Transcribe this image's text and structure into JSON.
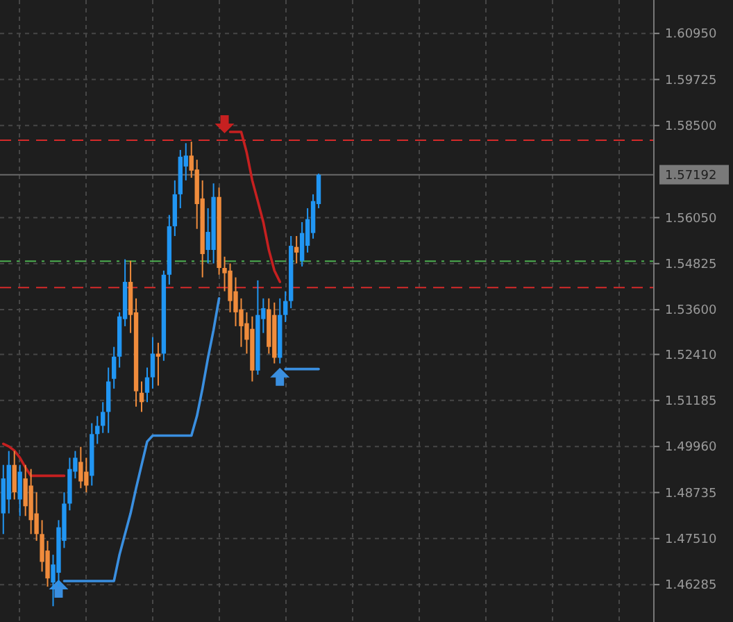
{
  "chart_data": {
    "type": "candlestick",
    "categories": [
      null,
      null,
      null,
      null,
      null,
      null,
      null,
      null,
      null,
      null,
      null,
      null,
      null,
      null,
      null,
      null,
      null,
      null,
      null,
      null,
      null,
      null,
      null,
      null,
      null,
      null,
      null,
      null,
      null,
      null,
      null,
      null,
      null,
      null,
      null,
      null,
      null,
      null,
      null,
      null,
      null,
      null,
      null,
      null,
      null,
      null,
      null,
      null,
      null,
      null,
      null,
      null,
      null,
      null,
      null,
      null,
      null,
      null,
      null,
      null,
      null,
      null,
      null,
      null,
      null,
      null,
      null,
      null,
      null,
      null,
      null,
      null,
      null,
      null,
      null,
      null,
      null,
      null,
      null,
      null,
      null,
      null,
      null,
      null,
      null,
      null,
      null,
      null,
      null,
      null,
      null,
      null,
      null,
      null,
      null,
      null,
      null,
      null,
      null,
      null,
      null,
      null,
      null,
      null,
      null,
      null,
      null,
      null,
      null,
      null,
      null,
      null,
      null,
      null,
      null,
      null,
      null,
      null
    ],
    "ohlc": [
      [
        1.4818,
        1.4947,
        1.4763,
        1.4911
      ],
      [
        1.4855,
        1.4984,
        1.4818,
        1.4947
      ],
      [
        1.4947,
        1.4984,
        1.4855,
        1.4874
      ],
      [
        1.4855,
        1.4947,
        1.4811,
        1.4929
      ],
      [
        1.4911,
        1.4947,
        1.4811,
        1.4837
      ],
      [
        1.4892,
        1.4936,
        1.4763,
        1.48
      ],
      [
        1.4818,
        1.4874,
        1.4745,
        1.4763
      ],
      [
        1.4763,
        1.48,
        1.4663,
        1.4689
      ],
      [
        1.4719,
        1.4745,
        1.4623,
        1.4645
      ],
      [
        1.4634,
        1.4708,
        1.4571,
        1.4682
      ],
      [
        1.466,
        1.48,
        1.4623,
        1.4781
      ],
      [
        1.4745,
        1.4874,
        1.4726,
        1.4844
      ],
      [
        1.4844,
        1.4966,
        1.4826,
        1.4936
      ],
      [
        1.4929,
        1.4984,
        1.4911,
        1.4966
      ],
      [
        1.4955,
        1.4995,
        1.4885,
        1.4903
      ],
      [
        1.4929,
        1.4966,
        1.4874,
        1.4892
      ],
      [
        1.4918,
        1.5058,
        1.4892,
        1.5029
      ],
      [
        1.5029,
        1.5077,
        1.5003,
        1.5051
      ],
      [
        1.5051,
        1.5114,
        1.5032,
        1.5088
      ],
      [
        1.5088,
        1.5206,
        1.5032,
        1.5169
      ],
      [
        1.5176,
        1.5261,
        1.515,
        1.5235
      ],
      [
        1.5235,
        1.5353,
        1.5206,
        1.5342
      ],
      [
        1.5335,
        1.5494,
        1.5316,
        1.5434
      ],
      [
        1.5434,
        1.549,
        1.5298,
        1.5346
      ],
      [
        1.5353,
        1.539,
        1.5102,
        1.5143
      ],
      [
        1.5139,
        1.5169,
        1.5088,
        1.5114
      ],
      [
        1.5139,
        1.5206,
        1.5114,
        1.518
      ],
      [
        1.518,
        1.5287,
        1.515,
        1.5243
      ],
      [
        1.5243,
        1.5272,
        1.5158,
        1.5235
      ],
      [
        1.5243,
        1.5464,
        1.5224,
        1.5453
      ],
      [
        1.5453,
        1.5612,
        1.5427,
        1.5582
      ],
      [
        1.5582,
        1.5704,
        1.5556,
        1.5667
      ],
      [
        1.5667,
        1.5785,
        1.563,
        1.5767
      ],
      [
        1.5741,
        1.5803,
        1.5704,
        1.577
      ],
      [
        1.577,
        1.5807,
        1.5711,
        1.573
      ],
      [
        1.5733,
        1.5759,
        1.5575,
        1.5641
      ],
      [
        1.5656,
        1.5704,
        1.5446,
        1.5508
      ],
      [
        1.5519,
        1.563,
        1.5483,
        1.5567
      ],
      [
        1.5519,
        1.5696,
        1.5483,
        1.566
      ],
      [
        1.566,
        1.5685,
        1.5453,
        1.5471
      ],
      [
        1.5471,
        1.5501,
        1.5409,
        1.5457
      ],
      [
        1.5464,
        1.5483,
        1.5353,
        1.5383
      ],
      [
        1.5409,
        1.5446,
        1.5316,
        1.5353
      ],
      [
        1.5361,
        1.539,
        1.5261,
        1.5316
      ],
      [
        1.5324,
        1.5353,
        1.5243,
        1.528
      ],
      [
        1.5309,
        1.5342,
        1.5169,
        1.5198
      ],
      [
        1.5198,
        1.5438,
        1.5187,
        1.5346
      ],
      [
        1.5335,
        1.539,
        1.5298,
        1.5364
      ],
      [
        1.5361,
        1.539,
        1.5243,
        1.5261
      ],
      [
        1.5346,
        1.5379,
        1.5217,
        1.5232
      ],
      [
        1.5232,
        1.539,
        1.5217,
        1.5346
      ],
      [
        1.5346,
        1.5409,
        1.5327,
        1.5383
      ],
      [
        1.5383,
        1.5556,
        1.5364,
        1.553
      ],
      [
        1.5527,
        1.5556,
        1.5483,
        1.5512
      ],
      [
        1.549,
        1.5593,
        1.5475,
        1.5564
      ],
      [
        1.553,
        1.563,
        1.5512,
        1.5601
      ],
      [
        1.5564,
        1.5667,
        1.5549,
        1.5649
      ],
      [
        1.5641,
        1.5722,
        1.563,
        1.57192
      ],
      null,
      null,
      null,
      null,
      null,
      null,
      null,
      null,
      null,
      null,
      null,
      null,
      null,
      null,
      null,
      null,
      null,
      null,
      null,
      null,
      null,
      null,
      null,
      null,
      null,
      null,
      null,
      null,
      null,
      null,
      null,
      null,
      null,
      null,
      null,
      null,
      null,
      null,
      null,
      null,
      null,
      null,
      null,
      null,
      null,
      null,
      null,
      null,
      null,
      null,
      null,
      null,
      null,
      null,
      null,
      null,
      null,
      null,
      null,
      null
    ],
    "colors": [
      "#2196f3",
      "#2196f3",
      "#f08c3c",
      "#2196f3",
      "#f08c3c",
      "#f08c3c",
      "#f08c3c",
      "#f08c3c",
      "#f08c3c",
      "#2196f3",
      "#2196f3",
      "#2196f3",
      "#2196f3",
      "#2196f3",
      "#f08c3c",
      "#f08c3c",
      "#2196f3",
      "#2196f3",
      "#2196f3",
      "#2196f3",
      "#2196f3",
      "#2196f3",
      "#2196f3",
      "#f08c3c",
      "#f08c3c",
      "#f08c3c",
      "#2196f3",
      "#2196f3",
      "#f08c3c",
      "#2196f3",
      "#2196f3",
      "#2196f3",
      "#2196f3",
      "#2196f3",
      "#f08c3c",
      "#f08c3c",
      "#f08c3c",
      "#2196f3",
      "#2196f3",
      "#f08c3c",
      "#f08c3c",
      "#f08c3c",
      "#f08c3c",
      "#f08c3c",
      "#f08c3c",
      "#f08c3c",
      "#2196f3",
      "#2196f3",
      "#f08c3c",
      "#f08c3c",
      "#2196f3",
      "#2196f3",
      "#2196f3",
      "#f08c3c",
      "#2196f3",
      "#2196f3",
      "#2196f3",
      "#2196f3",
      null,
      null,
      null,
      null,
      null,
      null,
      null,
      null,
      null,
      null,
      null,
      null,
      null,
      null,
      null,
      null,
      null,
      null,
      null,
      null,
      null,
      null,
      null,
      null,
      null,
      null,
      null,
      null,
      null,
      null,
      null,
      null,
      null,
      null,
      null,
      null,
      null,
      null,
      null,
      null,
      null,
      null,
      null,
      null,
      null,
      null,
      null,
      null,
      null,
      null,
      null,
      null,
      null,
      null,
      null,
      null,
      null,
      null,
      null,
      null
    ],
    "series": [
      {
        "type": "line",
        "color": "#c62020",
        "values": [
          1.5003,
          1.4996,
          1.4985,
          1.4966,
          1.494,
          1.4918,
          1.4918,
          1.4918,
          1.4918,
          1.4918,
          1.4918,
          1.4918,
          null,
          null,
          null,
          null,
          null,
          null,
          null,
          null,
          null,
          null,
          null,
          null,
          null,
          null,
          null,
          null,
          null,
          null,
          null,
          null,
          null,
          null,
          null,
          null,
          null,
          null,
          null,
          null,
          null,
          1.5833,
          1.5833,
          1.5833,
          1.5778,
          1.5704,
          1.5649,
          1.5593,
          1.5519,
          1.5464,
          1.5434,
          null,
          null,
          null,
          null,
          null,
          null,
          null,
          null,
          null,
          null,
          null,
          null,
          null,
          null,
          null,
          null,
          null,
          null,
          null,
          null,
          null,
          null,
          null,
          null,
          null,
          null,
          null,
          null,
          null,
          null,
          null,
          null,
          null,
          null,
          null,
          null,
          null,
          null,
          null,
          null,
          null,
          null,
          null,
          null,
          null,
          null,
          null,
          null,
          null,
          null,
          null,
          null,
          null,
          null,
          null,
          null,
          null,
          null,
          null,
          null,
          null,
          null,
          null,
          null,
          null,
          null,
          null
        ]
      },
      {
        "type": "line",
        "color": "#3a8fe0",
        "values": [
          null,
          null,
          null,
          null,
          null,
          null,
          null,
          null,
          null,
          null,
          null,
          1.4638,
          1.4638,
          1.4638,
          1.4638,
          1.4638,
          1.4638,
          1.4638,
          1.4638,
          1.4638,
          1.4638,
          1.4708,
          1.4763,
          1.4818,
          1.4885,
          1.4947,
          1.5009,
          1.5025,
          1.5025,
          1.5025,
          1.5025,
          1.5025,
          1.5025,
          1.5025,
          1.5025,
          1.5077,
          1.515,
          1.5232,
          1.5306,
          1.539,
          null,
          null,
          null,
          null,
          null,
          null,
          null,
          null,
          null,
          null,
          null,
          1.5202,
          1.5202,
          1.5202,
          1.5202,
          1.5202,
          1.5202,
          1.5202,
          null,
          null,
          null,
          null,
          null,
          null,
          null,
          null,
          null,
          null,
          null,
          null,
          null,
          null,
          null,
          null,
          null,
          null,
          null,
          null,
          null,
          null,
          null,
          null,
          null,
          null,
          null,
          null,
          null,
          null,
          null,
          null,
          null,
          null,
          null,
          null,
          null,
          null,
          null,
          null,
          null,
          null,
          null,
          null,
          null,
          null,
          null,
          null,
          null,
          null,
          null,
          null,
          null,
          null,
          null,
          null,
          null,
          null,
          null,
          null
        ]
      }
    ],
    "ylim": [
      1.4529,
      1.6184
    ],
    "yticks": [
      {
        "value": 1.6095,
        "label": "1.60950"
      },
      {
        "value": 1.59725,
        "label": "1.59725"
      },
      {
        "value": 1.585,
        "label": "1.58500"
      },
      {
        "value": 1.5605,
        "label": "1.56050"
      },
      {
        "value": 1.54825,
        "label": "1.54825"
      },
      {
        "value": 1.536,
        "label": "1.53600"
      },
      {
        "value": 1.5241,
        "label": "1.52410"
      },
      {
        "value": 1.51185,
        "label": "1.51185"
      },
      {
        "value": 1.4996,
        "label": "1.49960"
      },
      {
        "value": 1.48735,
        "label": "1.48735"
      },
      {
        "value": 1.4751,
        "label": "1.47510"
      },
      {
        "value": 1.46285,
        "label": "1.46285"
      }
    ],
    "ref_lines": [
      {
        "axis": "y",
        "value": 1.5811,
        "color": "#d42a2a",
        "line_style": "dashed"
      },
      {
        "axis": "y",
        "value": 1.5489,
        "color": "#4caf50",
        "line_style": "dashdot"
      },
      {
        "axis": "y",
        "value": 1.5419,
        "color": "#d42a2a",
        "line_style": "dashed"
      },
      {
        "axis": "y",
        "value": 1.57192,
        "label": "1.57192",
        "color": "#6a6a6a",
        "line_style": "solid"
      }
    ],
    "grid": true,
    "tick_labels": "y"
  }
}
